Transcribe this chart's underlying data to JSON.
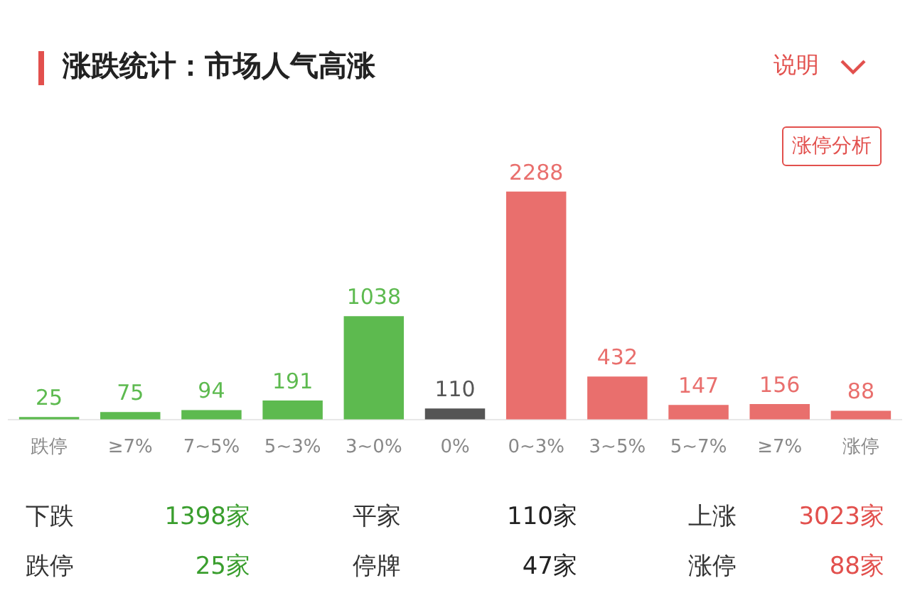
{
  "chart_data": {
    "type": "bar",
    "title": "涨跌统计：市场人气高涨",
    "categories": [
      "跌停",
      "≥7%",
      "7~5%",
      "5~3%",
      "3~0%",
      "0%",
      "0~3%",
      "3~5%",
      "5~7%",
      "≥7%",
      "涨停"
    ],
    "values": [
      25,
      75,
      94,
      191,
      1038,
      110,
      2288,
      432,
      147,
      156,
      88
    ],
    "colors": [
      "#5dba4f",
      "#5dba4f",
      "#5dba4f",
      "#5dba4f",
      "#5dba4f",
      "#555555",
      "#e96f6d",
      "#e96f6d",
      "#e96f6d",
      "#e96f6d",
      "#e96f6d"
    ],
    "data_labels": true,
    "grid": false,
    "legend": false,
    "annotations": [
      "说明",
      "涨停分析",
      "下跌",
      "1398家",
      "平家",
      "110家",
      "上涨",
      "3023家",
      "跌停",
      "25家",
      "停牌",
      "47家",
      "涨停",
      "88家"
    ]
  }
}
